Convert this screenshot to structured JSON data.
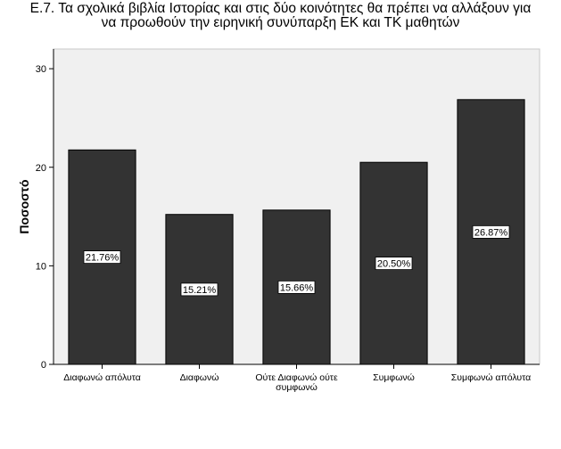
{
  "chart_data": {
    "type": "bar",
    "title_lines": [
      "Ε.7. Τα σχολικά βιβλία Ιστορίας και στις δύο κοινότητες θα πρέπει να αλλάξουν για",
      "να προωθούν την ειρηνική συνύπαρξη ΕΚ και ΤΚ μαθητών"
    ],
    "ylabel": "Ποσοστό",
    "xlabel": "",
    "categories": [
      [
        "Διαφωνώ απόλυτα"
      ],
      [
        "Διαφωνώ"
      ],
      [
        "Ούτε Διαφωνώ ούτε",
        "συμφωνώ"
      ],
      [
        "Συμφωνώ"
      ],
      [
        "Συμφωνώ απόλυτα"
      ]
    ],
    "values": [
      21.76,
      15.21,
      15.66,
      20.5,
      26.87
    ],
    "data_labels": [
      "21.76%",
      "15.21%",
      "15.66%",
      "20.50%",
      "26.87%"
    ],
    "ylim": [
      0,
      32
    ],
    "yticks": [
      0,
      10,
      20,
      30
    ],
    "grid": false,
    "colors": {
      "bar": "#333333",
      "plot_background": "#f0f0f0",
      "axis": "#000000"
    }
  }
}
